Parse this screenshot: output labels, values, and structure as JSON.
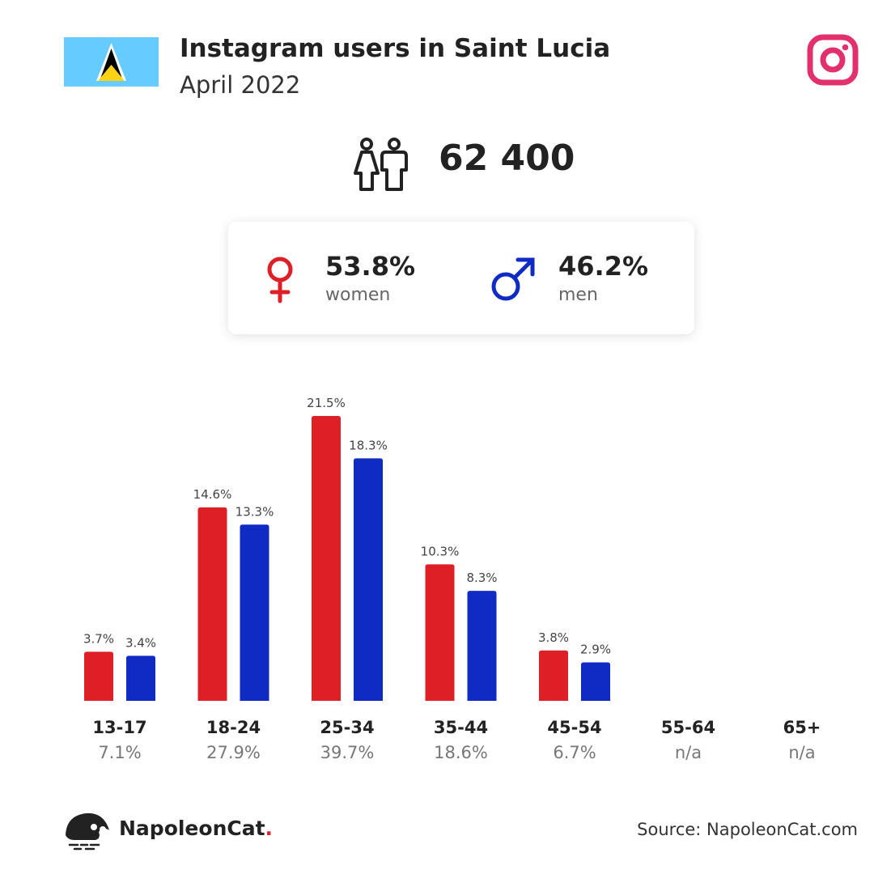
{
  "header": {
    "title": "Instagram users in Saint Lucia",
    "subtitle": "April 2022"
  },
  "total_users": "62 400",
  "gender": {
    "women_pct": "53.8%",
    "women_label": "women",
    "men_pct": "46.2%",
    "men_label": "men"
  },
  "colors": {
    "women": "#dd1f26",
    "men": "#0f2bc3",
    "instagram": "#e1306c",
    "flag_blue": "#66ccff",
    "flag_gold": "#fcd116"
  },
  "chart_data": {
    "type": "bar",
    "categories": [
      "13-17",
      "18-24",
      "25-34",
      "35-44",
      "45-54",
      "55-64",
      "65+"
    ],
    "category_totals": [
      "7.1%",
      "27.9%",
      "39.7%",
      "18.6%",
      "6.7%",
      "n/a",
      "n/a"
    ],
    "series": [
      {
        "values": [
          3.7,
          14.6,
          21.5,
          10.3,
          3.8,
          null,
          null
        ],
        "labels": [
          "3.7%",
          "14.6%",
          "21.5%",
          "10.3%",
          "3.8%",
          "",
          ""
        ],
        "color": "#dd1f26"
      },
      {
        "values": [
          3.4,
          13.3,
          18.3,
          8.3,
          2.9,
          null,
          null
        ],
        "labels": [
          "3.4%",
          "13.3%",
          "18.3%",
          "8.3%",
          "2.9%",
          "",
          ""
        ],
        "color": "#0f2bc3"
      }
    ],
    "ylim": [
      0,
      21.5
    ],
    "grid": false
  },
  "footer": {
    "brand": "NapoleonCat",
    "brand_dot": ".",
    "source": "Source: NapoleonCat.com"
  }
}
